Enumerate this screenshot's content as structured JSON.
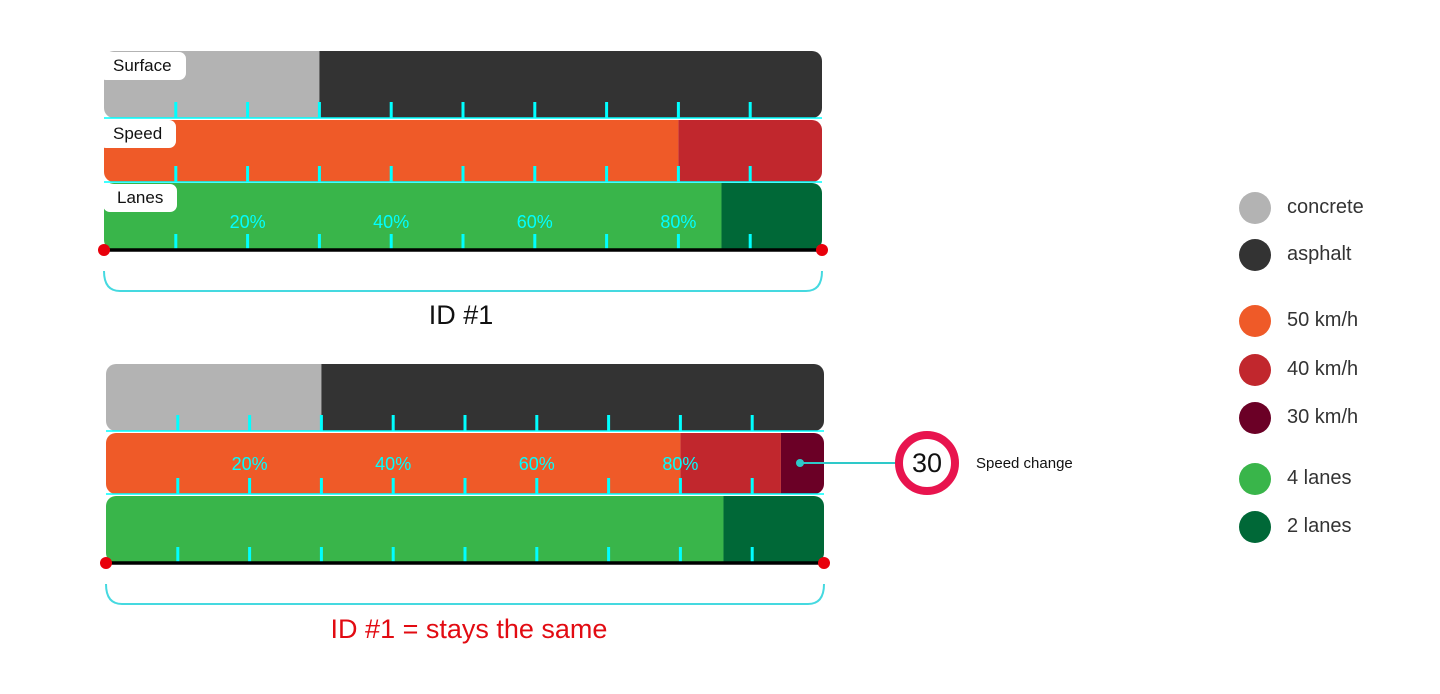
{
  "colors": {
    "concrete": "#b3b3b3",
    "asphalt": "#333333",
    "speed50": "#ef5a28",
    "speed40": "#c1272d",
    "speed30": "#6b0026",
    "lanes4": "#39b54a",
    "lanes2": "#006837",
    "tick": "#00ffff",
    "baseline": "#000000",
    "endpoint": "#e8000b",
    "bracket": "#45d9e0",
    "caption_alert": "#e20b12",
    "speed_sign_ring": "#e8144e"
  },
  "diagrams": [
    {
      "labels": {
        "surface": "Surface",
        "speed": "Speed",
        "lanes": "Lanes"
      },
      "percent_labels": [
        "20%",
        "40%",
        "60%",
        "80%"
      ],
      "surface_segments": [
        {
          "type": "concrete",
          "start": 0,
          "end": 0.3
        },
        {
          "type": "asphalt",
          "start": 0.3,
          "end": 1.0
        }
      ],
      "speed_segments": [
        {
          "type": "50 km/h",
          "start": 0,
          "end": 0.8
        },
        {
          "type": "40 km/h",
          "start": 0.8,
          "end": 1.0
        }
      ],
      "lanes_segments": [
        {
          "type": "4 lanes",
          "start": 0,
          "end": 0.86
        },
        {
          "type": "2 lanes",
          "start": 0.86,
          "end": 1.0
        }
      ],
      "caption": "ID #1"
    },
    {
      "percent_labels": [
        "20%",
        "40%",
        "60%",
        "80%"
      ],
      "surface_segments": [
        {
          "type": "concrete",
          "start": 0,
          "end": 0.3
        },
        {
          "type": "asphalt",
          "start": 0.3,
          "end": 1.0
        }
      ],
      "speed_segments": [
        {
          "type": "50 km/h",
          "start": 0,
          "end": 0.8
        },
        {
          "type": "40 km/h",
          "start": 0.8,
          "end": 0.94
        },
        {
          "type": "30 km/h",
          "start": 0.94,
          "end": 1.0
        }
      ],
      "lanes_segments": [
        {
          "type": "4 lanes",
          "start": 0,
          "end": 0.86
        },
        {
          "type": "2 lanes",
          "start": 0.86,
          "end": 1.0
        }
      ],
      "caption": "ID #1 = stays the same"
    }
  ],
  "callout": {
    "sign_value": "30",
    "label": "Speed change"
  },
  "legend": [
    {
      "label": "concrete",
      "color": "#b3b3b3"
    },
    {
      "label": "asphalt",
      "color": "#333333"
    },
    {
      "label": "50 km/h",
      "color": "#ef5a28"
    },
    {
      "label": "40 km/h",
      "color": "#c1272d"
    },
    {
      "label": "30 km/h",
      "color": "#6b0026"
    },
    {
      "label": "4 lanes",
      "color": "#39b54a"
    },
    {
      "label": "2 lanes",
      "color": "#006837"
    }
  ]
}
